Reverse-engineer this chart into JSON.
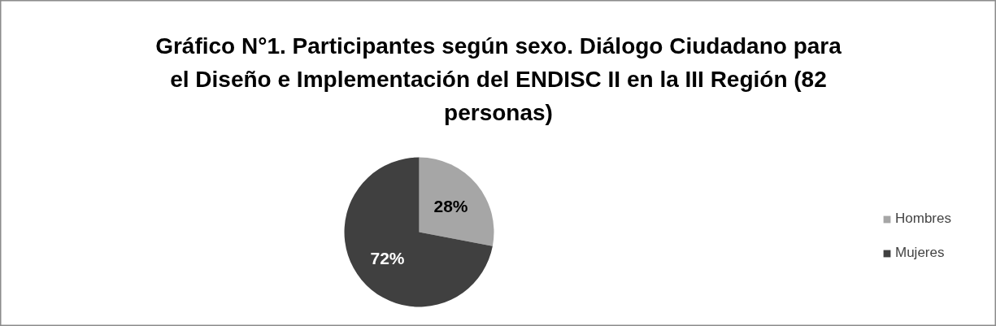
{
  "chart_data": {
    "type": "pie",
    "title": "Gráfico N°1. Participantes según sexo. Diálogo Ciudadano para el Diseño e Implementación del ENDISC II en la III Región (82 personas)",
    "categories": [
      "Hombres",
      "Mujeres"
    ],
    "values": [
      28,
      72
    ],
    "colors": [
      "#a6a6a6",
      "#404040"
    ],
    "value_labels": [
      "28%",
      "72%"
    ],
    "legend": "right"
  }
}
